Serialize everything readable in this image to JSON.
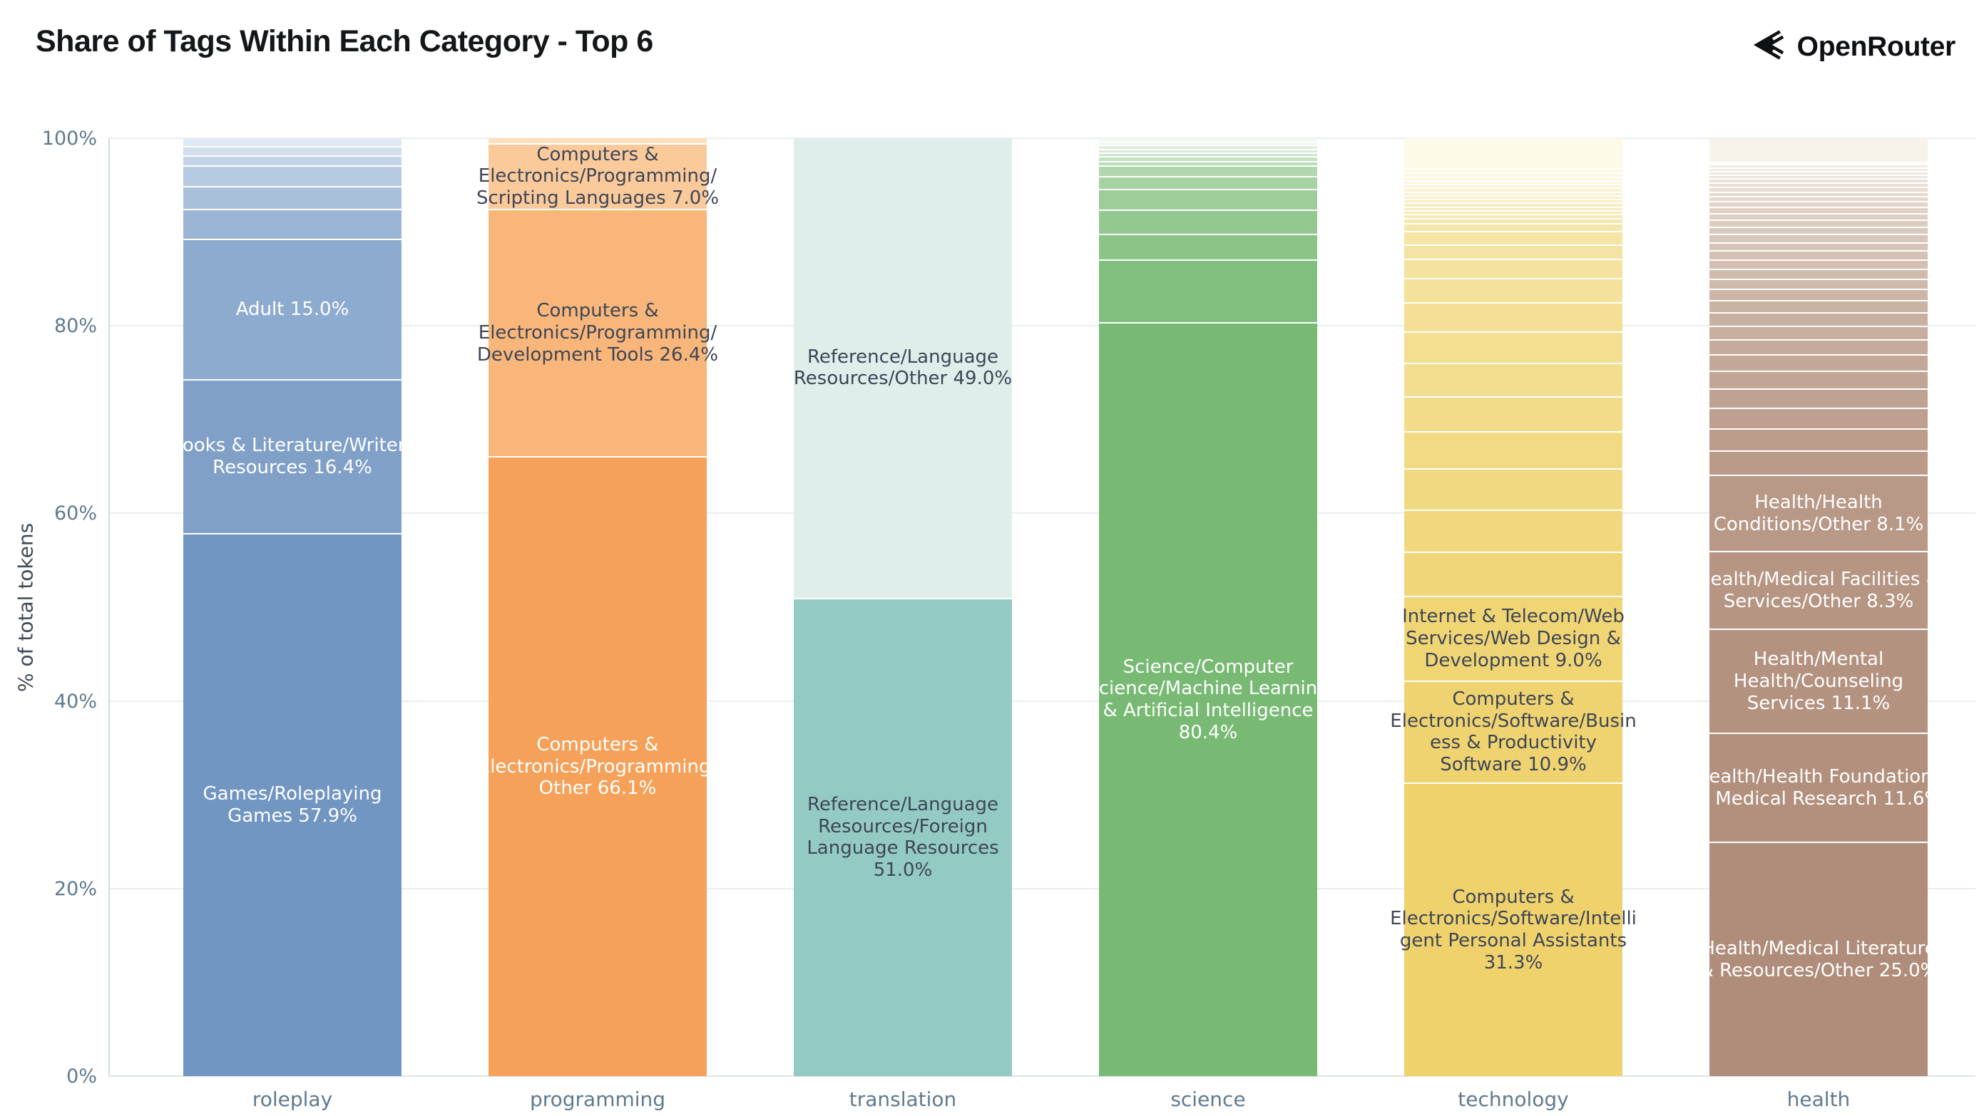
{
  "title": "Share of Tags Within Each Category - Top 6",
  "brand": {
    "name": "OpenRouter"
  },
  "axis": {
    "y_title": "% of total tokens",
    "ticks": [
      {
        "value": 0,
        "label": "0%"
      },
      {
        "value": 20,
        "label": "20%"
      },
      {
        "value": 40,
        "label": "40%"
      },
      {
        "value": 60,
        "label": "60%"
      },
      {
        "value": 80,
        "label": "80%"
      },
      {
        "value": 100,
        "label": "100%"
      }
    ]
  },
  "styles": {
    "tick_color": "#5f7a8e",
    "xlabel_color": "#5f7a8e",
    "axis_title_color": "#3e4a55",
    "grid_color": "#e9eef1",
    "axis_line_color": "#cfdce5",
    "segment_gap_color": "#ffffff",
    "label_dark": "#3e4656",
    "label_light": "#ffffff"
  },
  "chart_data": {
    "type": "bar",
    "stacked": true,
    "orientation": "vertical",
    "title": "Share of Tags Within Each Category - Top 6",
    "ylabel": "% of total tokens",
    "ylim": [
      0,
      100
    ],
    "grid": true,
    "legend": false,
    "segment_order": "bottom_to_top",
    "categories": [
      "roleplay",
      "programming",
      "translation",
      "science",
      "technology",
      "health"
    ],
    "bars": [
      {
        "category": "roleplay",
        "base_color": "#7296c2",
        "light_color": "#dfe9f4",
        "segments": [
          {
            "label": "Games/Roleplaying Games",
            "pct": 57.9,
            "text_color": "#ffffff"
          },
          {
            "label": "Books & Literature/Writers Resources",
            "pct": 16.4,
            "text_color": "#ffffff"
          },
          {
            "label": "Adult",
            "pct": 15.0,
            "text_color": "#ffffff"
          },
          {
            "pct": 3.2
          },
          {
            "pct": 2.4
          },
          {
            "pct": 2.2
          },
          {
            "pct": 1.1
          },
          {
            "pct": 1.0
          },
          {
            "pct": 0.8
          }
        ]
      },
      {
        "category": "programming",
        "base_color": "#f6a159",
        "light_color": "#fddfbc",
        "segments": [
          {
            "label": "Computers & Electronics/Programming/Other",
            "pct": 66.1,
            "text_color": "#ffffff"
          },
          {
            "label": "Computers & Electronics/Programming/Development Tools",
            "pct": 26.4,
            "text_color": "#3e4656"
          },
          {
            "label": "Computers & Electronics/Programming/Scripting Languages",
            "pct": 7.0,
            "text_color": "#3e4656"
          },
          {
            "pct": 0.5
          }
        ]
      },
      {
        "category": "translation",
        "base_color": "#93cac4",
        "light_color": "#dfedeb",
        "segments": [
          {
            "label": "Reference/Language Resources/Foreign Language Resources",
            "pct": 51.0,
            "text_color": "#3e4656"
          },
          {
            "label": "Reference/Language Resources/Other",
            "pct": 49.0,
            "text_color": "#3e4656"
          }
        ]
      },
      {
        "category": "science",
        "base_color": "#78ba74",
        "light_color": "#f3f8f1",
        "segments": [
          {
            "label": "Science/Computer Science/Machine Learning & Artificial Intelligence",
            "pct": 80.4,
            "text_color": "#ffffff"
          },
          {
            "pct": 6.7
          },
          {
            "pct": 2.7
          },
          {
            "pct": 2.6
          },
          {
            "pct": 2.2
          },
          {
            "pct": 1.4
          },
          {
            "pct": 1.1
          },
          {
            "pct": 0.5
          },
          {
            "pct": 0.5
          },
          {
            "pct": 0.4
          },
          {
            "pct": 0.4
          },
          {
            "pct": 0.4
          },
          {
            "pct": 0.35
          },
          {
            "pct": 0.35
          }
        ]
      },
      {
        "category": "technology",
        "base_color": "#efd26c",
        "light_color": "#fdfaea",
        "segments": [
          {
            "label": "Computers & Electronics/Software/Intelligent Personal Assistants",
            "pct": 31.3,
            "text_color": "#3e4656"
          },
          {
            "label": "Computers & Electronics/Software/Business & Productivity Software",
            "pct": 10.9,
            "text_color": "#3e4656"
          },
          {
            "label": "Internet & Telecom/Web Services/Web Design & Development",
            "pct": 9.0,
            "text_color": "#3e4656"
          },
          {
            "pct": 4.7
          },
          {
            "pct": 4.5
          },
          {
            "pct": 4.4
          },
          {
            "pct": 4.0
          },
          {
            "pct": 3.7
          },
          {
            "pct": 3.6
          },
          {
            "pct": 3.3
          },
          {
            "pct": 3.1
          },
          {
            "pct": 2.6
          },
          {
            "pct": 2.1
          },
          {
            "pct": 1.5
          },
          {
            "pct": 1.4
          },
          {
            "pct": 0.85
          },
          {
            "pct": 0.55
          },
          {
            "pct": 0.45
          },
          {
            "pct": 0.4
          },
          {
            "pct": 0.4
          },
          {
            "pct": 0.4
          },
          {
            "pct": 0.4
          },
          {
            "pct": 0.4
          },
          {
            "pct": 0.4
          },
          {
            "pct": 0.4
          },
          {
            "pct": 0.4
          },
          {
            "pct": 0.4
          },
          {
            "pct": 0.4
          },
          {
            "pct": 0.4
          },
          {
            "pct": 0.45
          },
          {
            "pct": 3.2
          }
        ]
      },
      {
        "category": "health",
        "base_color": "#b08d7a",
        "light_color": "#f7f2ea",
        "segments": [
          {
            "label": "Health/Medical Literature & Resources/Other",
            "pct": 25.0,
            "text_color": "#ffffff"
          },
          {
            "label": "Health/Health Foundations & Medical Research",
            "pct": 11.6,
            "text_color": "#ffffff"
          },
          {
            "label": "Health/Mental Health/Counseling Services",
            "pct": 11.1,
            "text_color": "#ffffff"
          },
          {
            "label": "Health/Medical Facilities & Services/Other",
            "pct": 8.3,
            "text_color": "#ffffff"
          },
          {
            "label": "Health/Health Conditions/Other",
            "pct": 8.1,
            "text_color": "#ffffff"
          },
          {
            "pct": 2.6
          },
          {
            "pct": 2.4
          },
          {
            "pct": 2.2
          },
          {
            "pct": 2.0
          },
          {
            "pct": 1.9
          },
          {
            "pct": 1.75
          },
          {
            "pct": 1.6
          },
          {
            "pct": 1.5
          },
          {
            "pct": 1.4
          },
          {
            "pct": 1.3
          },
          {
            "pct": 1.2
          },
          {
            "pct": 1.1
          },
          {
            "pct": 1.05
          },
          {
            "pct": 1.0
          },
          {
            "pct": 0.95
          },
          {
            "pct": 0.9
          },
          {
            "pct": 0.85
          },
          {
            "pct": 0.8
          },
          {
            "pct": 0.75
          },
          {
            "pct": 0.7
          },
          {
            "pct": 0.65
          },
          {
            "pct": 0.6
          },
          {
            "pct": 0.55
          },
          {
            "pct": 0.5
          },
          {
            "pct": 0.5
          },
          {
            "pct": 0.45
          },
          {
            "pct": 0.45
          },
          {
            "pct": 0.4
          },
          {
            "pct": 0.4
          },
          {
            "pct": 0.35
          },
          {
            "pct": 0.35
          },
          {
            "pct": 0.3
          },
          {
            "pct": 2.45
          }
        ]
      }
    ]
  }
}
